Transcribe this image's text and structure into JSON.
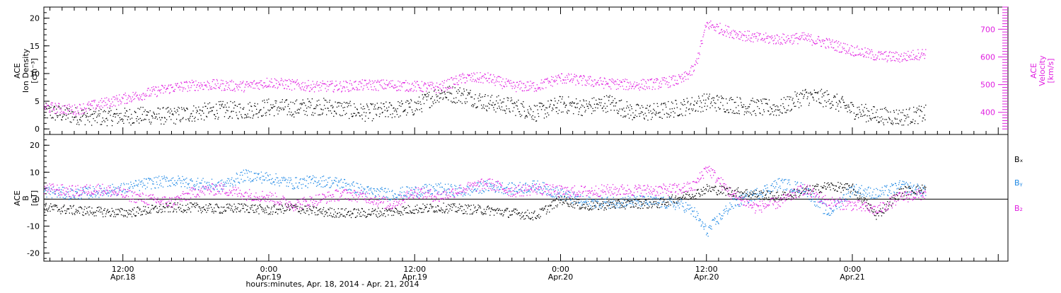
{
  "figure": {
    "xlabel": "hours:minutes, Apr. 18, 2014 - Apr. 21, 2014",
    "x_tick_labels": [
      {
        "time": "12:00",
        "date": "Apr.18",
        "hours": 12
      },
      {
        "time": "0:00",
        "date": "Apr.19",
        "hours": 24
      },
      {
        "time": "12:00",
        "date": "Apr.19",
        "hours": 36
      },
      {
        "time": "0:00",
        "date": "Apr.20",
        "hours": 48
      },
      {
        "time": "12:00",
        "date": "Apr.20",
        "hours": 60
      },
      {
        "time": "0:00",
        "date": "Apr.21",
        "hours": 72
      }
    ]
  },
  "chart_data": [
    {
      "type": "scatter",
      "name_panel": "ion-density-velocity",
      "ylabel_lines": [
        "ACE",
        "Ion Density",
        "[cm⁻³]"
      ],
      "ylabel_right_lines": [
        "ACE",
        "Velocity",
        "[km/s]"
      ],
      "x_range_hours": [
        5.5,
        84.8
      ],
      "ylim": [
        -1,
        22
      ],
      "yticks": [
        0,
        5,
        10,
        15,
        20
      ],
      "ylim_right": [
        320,
        780
      ],
      "yticks_right": [
        400,
        500,
        600,
        700
      ],
      "right_axis_color": "#e020e0",
      "series": [
        {
          "name": "Ion Density",
          "axis": "left",
          "color": "#000000",
          "x": [
            5.5,
            8,
            10,
            12,
            14,
            16,
            18,
            20,
            22,
            24,
            26,
            28,
            30,
            32,
            34,
            36,
            38,
            40,
            42,
            44,
            46,
            48,
            50,
            52,
            54,
            56,
            58,
            60,
            62,
            64,
            66,
            68,
            70,
            72,
            74,
            76,
            78
          ],
          "y": [
            3.2,
            2.5,
            2.2,
            2.3,
            2.5,
            2.4,
            3.0,
            3.5,
            3.4,
            4.0,
            3.8,
            4.2,
            3.7,
            3.0,
            3.5,
            4.0,
            6.5,
            6.2,
            4.8,
            4.2,
            3.0,
            4.5,
            4.0,
            4.8,
            3.0,
            3.2,
            4.0,
            5.0,
            4.5,
            4.0,
            3.8,
            6.0,
            5.5,
            3.5,
            2.5,
            2.2,
            2.8
          ]
        },
        {
          "name": "Velocity",
          "axis": "right",
          "color": "#e020e0",
          "x": [
            5.5,
            8,
            10,
            12,
            14,
            16,
            18,
            20,
            22,
            24,
            26,
            28,
            30,
            32,
            34,
            36,
            38,
            40,
            42,
            44,
            46,
            48,
            50,
            52,
            54,
            56,
            58,
            59,
            60,
            62,
            64,
            66,
            68,
            70,
            72,
            74,
            76,
            78
          ],
          "y": [
            420,
            410,
            430,
            450,
            470,
            490,
            500,
            500,
            495,
            510,
            500,
            495,
            495,
            500,
            500,
            495,
            490,
            525,
            525,
            495,
            495,
            525,
            515,
            505,
            500,
            505,
            520,
            560,
            720,
            690,
            670,
            665,
            670,
            650,
            625,
            605,
            600,
            615
          ]
        }
      ]
    },
    {
      "type": "scatter",
      "name_panel": "imf-components",
      "ylabel_lines": [
        "ACE",
        "B",
        "[nT]"
      ],
      "x_range_hours": [
        5.5,
        84.8
      ],
      "ylim": [
        -23,
        24
      ],
      "yticks": [
        -20,
        -10,
        0,
        10,
        20
      ],
      "legend": [
        {
          "label": "Bₓ",
          "color": "#000000"
        },
        {
          "label": "Bᵧ",
          "color": "#1e88e5"
        },
        {
          "label": "B₂",
          "color": "#e020e0"
        }
      ],
      "series": [
        {
          "name": "Bₓ",
          "color": "#000000",
          "x": [
            5.5,
            8,
            10,
            12,
            14,
            16,
            18,
            20,
            22,
            24,
            26,
            28,
            30,
            32,
            34,
            36,
            38,
            40,
            42,
            44,
            46,
            48,
            50,
            52,
            54,
            56,
            58,
            59,
            60,
            62,
            64,
            66,
            68,
            70,
            72,
            74,
            76,
            78
          ],
          "y": [
            -3,
            -4,
            -4.5,
            -5,
            -4,
            -3,
            -3,
            -3.5,
            -3,
            -4,
            -3,
            -4.5,
            -5,
            -5,
            -4.5,
            -3.5,
            -3,
            -3.5,
            -4,
            -5,
            -6,
            0,
            -2.5,
            -2,
            -1.5,
            -1.5,
            1,
            2,
            4,
            3,
            2,
            1,
            3,
            5,
            4,
            -6,
            3,
            4
          ]
        },
        {
          "name": "Bᵧ",
          "color": "#1e88e5",
          "x": [
            5.5,
            8,
            10,
            12,
            14,
            16,
            18,
            20,
            22,
            24,
            26,
            28,
            30,
            32,
            34,
            36,
            38,
            40,
            42,
            44,
            46,
            48,
            50,
            52,
            54,
            56,
            58,
            59,
            60,
            62,
            64,
            66,
            68,
            70,
            72,
            74,
            76,
            78
          ],
          "y": [
            3,
            2,
            3,
            4,
            6,
            7,
            6,
            5,
            9,
            8,
            6,
            7,
            6,
            3,
            2,
            3,
            4,
            3,
            5,
            4,
            5,
            2,
            -1,
            -1,
            -0.5,
            -1,
            -2,
            -5,
            -12,
            -2,
            2,
            6,
            4,
            -5,
            4,
            2,
            5,
            3
          ]
        },
        {
          "name": "B₂",
          "color": "#e020e0",
          "x": [
            5.5,
            8,
            10,
            12,
            14,
            16,
            18,
            20,
            22,
            24,
            26,
            28,
            30,
            32,
            34,
            36,
            38,
            40,
            42,
            44,
            46,
            48,
            50,
            52,
            54,
            56,
            58,
            59,
            60,
            62,
            64,
            66,
            68,
            70,
            72,
            74,
            76,
            78
          ],
          "y": [
            4,
            3,
            4,
            2,
            0,
            -1,
            3,
            4,
            2,
            1,
            -2,
            0,
            2,
            1,
            -2,
            3,
            1,
            4,
            6,
            3,
            4,
            3,
            3,
            3.5,
            3.5,
            3.5,
            4,
            5,
            12,
            2,
            -3,
            -1,
            4,
            -1,
            -2,
            -4,
            1,
            2
          ]
        }
      ]
    }
  ]
}
